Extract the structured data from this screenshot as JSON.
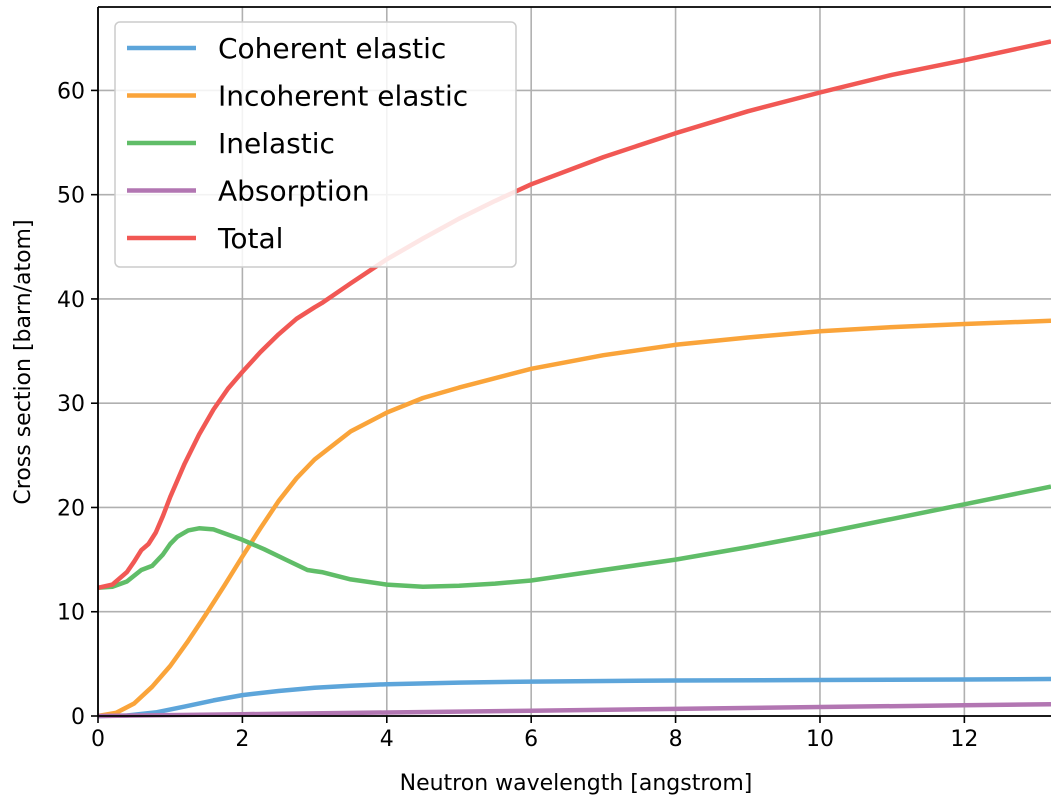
{
  "chart_data": {
    "type": "line",
    "title": "",
    "xlabel": "Neutron wavelength [angstrom]",
    "ylabel": "Cross section [barn/atom]",
    "xlim": [
      0,
      13.2
    ],
    "ylim": [
      0,
      68
    ],
    "xticks": [
      0,
      2,
      4,
      6,
      8,
      10,
      12
    ],
    "yticks": [
      0,
      10,
      20,
      30,
      40,
      50,
      60
    ],
    "grid": true,
    "legend_position": "top-left",
    "series": [
      {
        "name": "Coherent elastic",
        "color": "#5da5da",
        "x": [
          0,
          0.4,
          0.8,
          1.2,
          1.6,
          2.0,
          2.5,
          3.0,
          3.5,
          4.0,
          5.0,
          6.0,
          8.0,
          10.0,
          12.0,
          13.2
        ],
        "y": [
          0,
          0.05,
          0.35,
          0.9,
          1.5,
          2.0,
          2.4,
          2.7,
          2.9,
          3.05,
          3.2,
          3.3,
          3.4,
          3.45,
          3.5,
          3.55
        ]
      },
      {
        "name": "Incoherent elastic",
        "color": "#faa43a",
        "x": [
          0,
          0.25,
          0.5,
          0.75,
          1.0,
          1.25,
          1.5,
          1.75,
          2.0,
          2.25,
          2.5,
          2.75,
          3.0,
          3.5,
          4.0,
          4.5,
          5.0,
          6.0,
          7.0,
          8.0,
          9.0,
          10.0,
          11.0,
          12.0,
          13.2
        ],
        "y": [
          0,
          0.3,
          1.2,
          2.8,
          4.8,
          7.2,
          9.8,
          12.5,
          15.3,
          18.0,
          20.6,
          22.8,
          24.6,
          27.3,
          29.1,
          30.5,
          31.5,
          33.3,
          34.6,
          35.6,
          36.3,
          36.9,
          37.3,
          37.6,
          37.9
        ]
      },
      {
        "name": "Inelastic",
        "color": "#60bd68",
        "x": [
          0,
          0.2,
          0.4,
          0.6,
          0.75,
          0.9,
          1.0,
          1.1,
          1.25,
          1.4,
          1.6,
          1.8,
          2.0,
          2.3,
          2.6,
          2.9,
          3.0,
          3.1,
          3.5,
          4.0,
          4.5,
          4.75,
          5.0,
          5.5,
          6.0,
          7.0,
          8.0,
          9.0,
          10.0,
          11.0,
          12.0,
          13.2
        ],
        "y": [
          12.3,
          12.4,
          12.9,
          14.0,
          14.4,
          15.5,
          16.5,
          17.2,
          17.8,
          18.0,
          17.9,
          17.4,
          16.9,
          16.0,
          15.0,
          14.0,
          13.9,
          13.8,
          13.1,
          12.6,
          12.4,
          12.45,
          12.5,
          12.7,
          13.0,
          14.0,
          15.0,
          16.2,
          17.5,
          18.9,
          20.3,
          22.0
        ]
      },
      {
        "name": "Absorption",
        "color": "#b276b2",
        "x": [
          0,
          2,
          4,
          6,
          8,
          10,
          12,
          13.2
        ],
        "y": [
          0,
          0.17,
          0.34,
          0.51,
          0.68,
          0.86,
          1.03,
          1.13
        ]
      },
      {
        "name": "Total",
        "color": "#f15854",
        "x": [
          0,
          0.2,
          0.4,
          0.5,
          0.6,
          0.7,
          0.8,
          0.9,
          1.0,
          1.1,
          1.2,
          1.4,
          1.6,
          1.8,
          2.0,
          2.25,
          2.5,
          2.75,
          3.0,
          3.1,
          3.5,
          4.0,
          4.5,
          5.0,
          5.5,
          6.0,
          7.0,
          8.0,
          9.0,
          10.0,
          11.0,
          12.0,
          13.2
        ],
        "y": [
          12.3,
          12.6,
          13.8,
          14.8,
          15.9,
          16.5,
          17.6,
          19.2,
          21.0,
          22.6,
          24.2,
          27.0,
          29.4,
          31.4,
          33.0,
          34.9,
          36.6,
          38.1,
          39.2,
          39.6,
          41.5,
          43.8,
          45.8,
          47.7,
          49.4,
          51.0,
          53.6,
          55.9,
          58.0,
          59.8,
          61.5,
          62.9,
          64.7
        ]
      }
    ]
  }
}
